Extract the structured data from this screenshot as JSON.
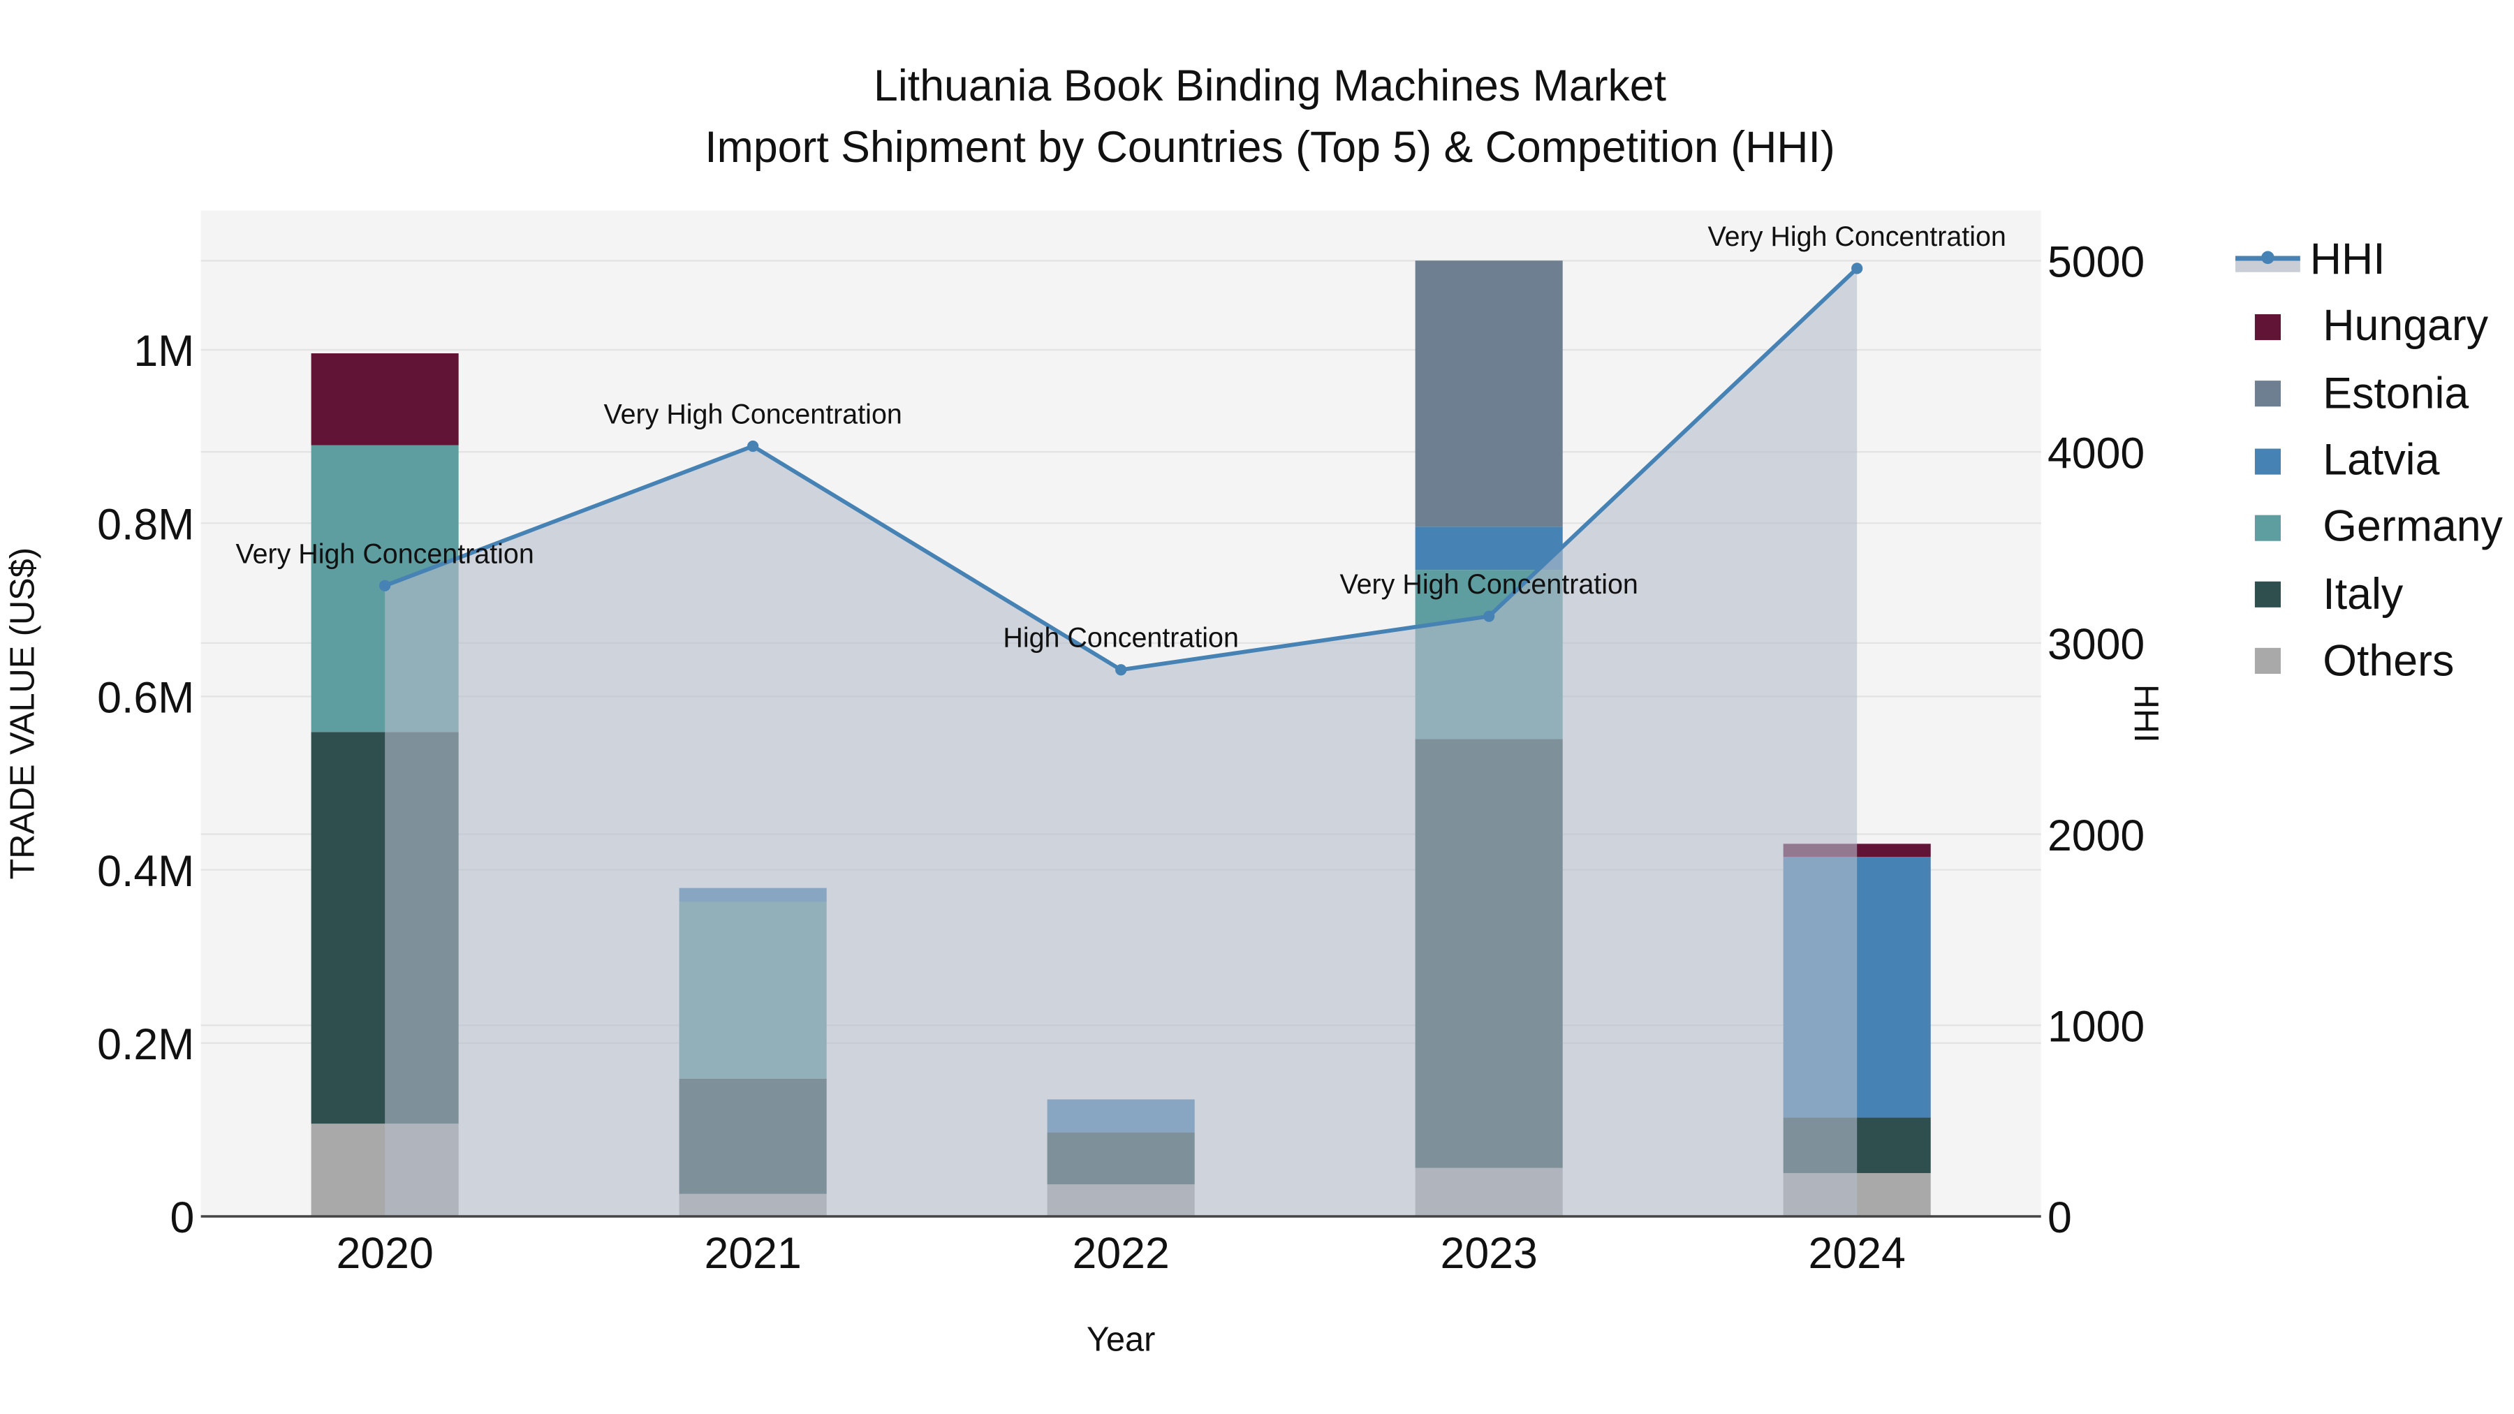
{
  "chart_data": {
    "type": "bar",
    "title": "Lithuania Book Binding Machines Market",
    "subtitle": "Import Shipment by Countries (Top 5) & Competition (HHI)",
    "xlabel": "Year",
    "ylabel": "TRADE VALUE (US$)",
    "y2label": "HHI",
    "categories": [
      "2020",
      "2021",
      "2022",
      "2023",
      "2024"
    ],
    "stacked": true,
    "ylim": [
      0,
      1150000
    ],
    "y_ticks": [
      "0",
      "0.2M",
      "0.4M",
      "0.6M",
      "0.8M",
      "1M"
    ],
    "y2lim": [
      0,
      5250
    ],
    "y2_ticks": [
      "0",
      "1000",
      "2000",
      "3000",
      "4000",
      "5000"
    ],
    "grid": true,
    "legend_position": "right",
    "series": [
      {
        "name": "Others",
        "color": "#a9a9a9",
        "values": [
          107000,
          26000,
          37000,
          56000,
          50000
        ]
      },
      {
        "name": "Italy",
        "color": "#2f4f4f",
        "values": [
          452000,
          133000,
          60000,
          495000,
          64000
        ]
      },
      {
        "name": "Germany",
        "color": "#5f9ea0",
        "values": [
          331000,
          204000,
          0,
          195000,
          0
        ]
      },
      {
        "name": "Latvia",
        "color": "#4682b4",
        "values": [
          0,
          16000,
          38000,
          50000,
          301000
        ]
      },
      {
        "name": "Estonia",
        "color": "#6e7f91",
        "values": [
          0,
          0,
          0,
          307000,
          0
        ]
      },
      {
        "name": "Hungary",
        "color": "#611435",
        "values": [
          106000,
          0,
          0,
          0,
          15000
        ]
      }
    ],
    "hhi": {
      "name": "HHI",
      "type": "line",
      "color": "#4682b4",
      "fill": "#c8cdd6",
      "values": [
        3300,
        4030,
        2860,
        3140,
        4960
      ],
      "annotations": [
        "Very High Concentration",
        "Very High Concentration",
        "High Concentration",
        "Very High Concentration",
        "Very High Concentration"
      ]
    }
  },
  "legend": {
    "items": [
      {
        "label": "HHI",
        "color": "#4682b4"
      },
      {
        "label": "Hungary",
        "color": "#611435"
      },
      {
        "label": "Estonia",
        "color": "#6e7f91"
      },
      {
        "label": "Latvia",
        "color": "#4682b4"
      },
      {
        "label": "Germany",
        "color": "#5f9ea0"
      },
      {
        "label": "Italy",
        "color": "#2f4f4f"
      },
      {
        "label": "Others",
        "color": "#a9a9a9"
      }
    ]
  }
}
